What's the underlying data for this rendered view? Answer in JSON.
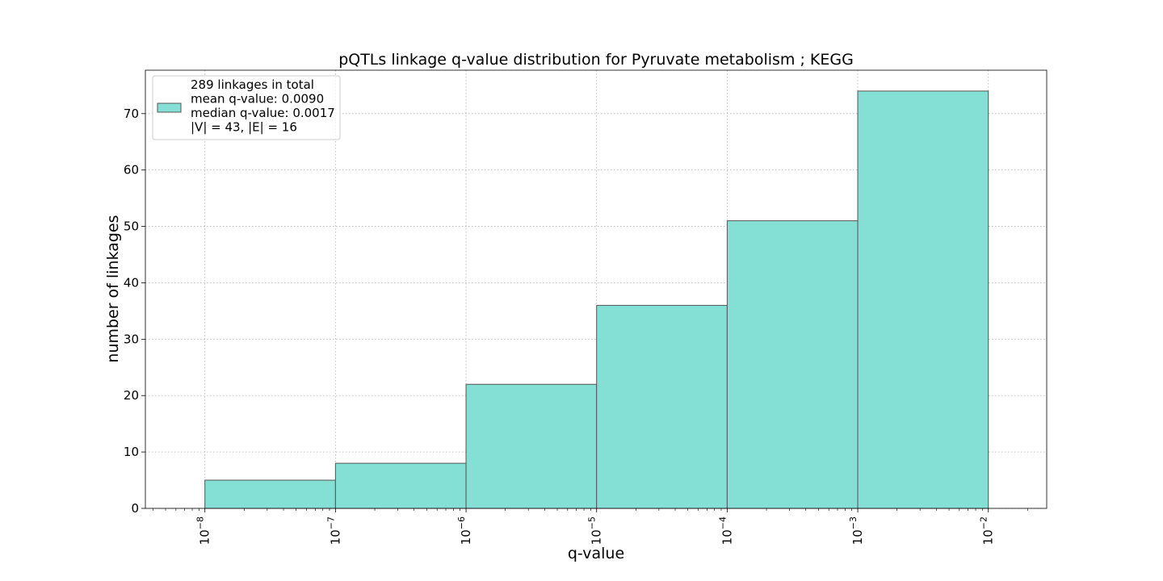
{
  "chart_data": {
    "type": "bar",
    "title": "pQTLs linkage q-value distribution for Pyruvate metabolism ; KEGG",
    "xlabel": "q-value",
    "ylabel": "number of linkages",
    "x_scale": "log",
    "bins": [
      {
        "x0": 1e-08,
        "x1": 1e-07,
        "count": 5
      },
      {
        "x0": 1e-07,
        "x1": 1e-06,
        "count": 8
      },
      {
        "x0": 1e-06,
        "x1": 1e-05,
        "count": 22
      },
      {
        "x0": 1e-05,
        "x1": 0.0001,
        "count": 36
      },
      {
        "x0": 0.0001,
        "x1": 0.001,
        "count": 51
      },
      {
        "x0": 0.001,
        "x1": 0.01,
        "count": 74
      }
    ],
    "xlim": [
      3.5e-09,
      0.028
    ],
    "ylim": [
      0,
      77.7
    ],
    "x_ticks": [
      {
        "base": "10",
        "exp": "−8",
        "value": 1e-08
      },
      {
        "base": "10",
        "exp": "−7",
        "value": 1e-07
      },
      {
        "base": "10",
        "exp": "−6",
        "value": 1e-06
      },
      {
        "base": "10",
        "exp": "−5",
        "value": 1e-05
      },
      {
        "base": "10",
        "exp": "−4",
        "value": 0.0001
      },
      {
        "base": "10",
        "exp": "−3",
        "value": 0.001
      },
      {
        "base": "10",
        "exp": "−2",
        "value": 0.01
      }
    ],
    "y_ticks": [
      "0",
      "10",
      "20",
      "30",
      "40",
      "50",
      "60",
      "70"
    ],
    "grid": true,
    "legend": {
      "placement": "top-left",
      "lines": [
        "289 linkages in total",
        "mean q-value: 0.0090",
        "median q-value: 0.0017",
        "|V| = 43, |E| = 16"
      ]
    },
    "colors": {
      "bar_fill": "#84dfd5",
      "bar_edge": "#555555",
      "grid": "#b0b0b0"
    }
  }
}
